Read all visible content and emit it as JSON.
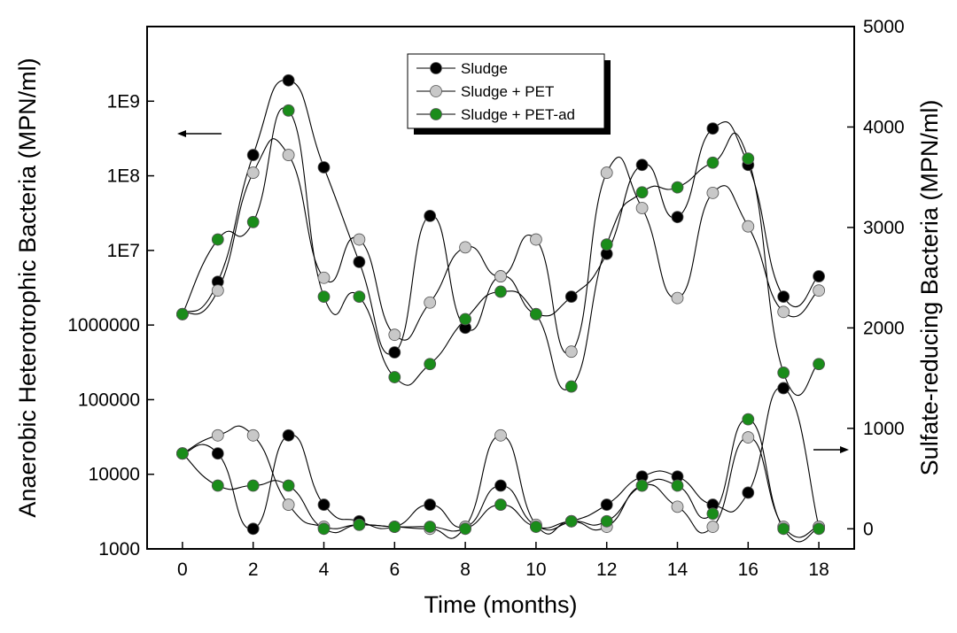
{
  "chart_data": {
    "type": "scatter",
    "x_label": "Time (months)",
    "x_range": [
      -1,
      19
    ],
    "x_ticks": [
      0,
      2,
      4,
      6,
      8,
      10,
      12,
      14,
      16,
      18
    ],
    "left_axis": {
      "label": "Anaerobic Heterotrophic Bacteria (MPN/ml)",
      "scale": "log",
      "range": [
        1000,
        10000000000
      ],
      "ticks": [
        1000,
        10000,
        100000,
        1000000,
        10000000,
        100000000,
        1000000000
      ],
      "tick_labels": [
        "1000",
        "10000",
        "100000",
        "1000000",
        "1E7",
        "1E8",
        "1E9"
      ]
    },
    "right_axis": {
      "label": "Sulfate-reducing Bacteria (MPN/ml)",
      "scale": "linear",
      "range": [
        -200,
        5000
      ],
      "ticks": [
        0,
        1000,
        2000,
        3000,
        4000,
        5000
      ],
      "tick_labels": [
        "0",
        "1000",
        "2000",
        "3000",
        "4000",
        "5000"
      ]
    },
    "legend": {
      "position": "top-center",
      "entries": [
        "Sludge",
        "Sludge + PET",
        "Sludge + PET-ad"
      ]
    },
    "series": [
      {
        "name": "Sludge",
        "axis": "left",
        "color": "#000000",
        "x": [
          0,
          1,
          2,
          3,
          4,
          5,
          6,
          7,
          8,
          9,
          10,
          11,
          12,
          13,
          14,
          15,
          16,
          17,
          18
        ],
        "y": [
          1400000,
          3800000,
          190000000,
          1900000000,
          130000000,
          7000000,
          430000,
          29000000,
          920000,
          4500000,
          1400000,
          2400000,
          9000000,
          140000000,
          28000000,
          430000000,
          140000000,
          2400000,
          4500000
        ]
      },
      {
        "name": "Sludge + PET",
        "axis": "left",
        "color": "#c8c8c8",
        "x": [
          0,
          1,
          2,
          3,
          4,
          5,
          6,
          7,
          8,
          9,
          10,
          11,
          12,
          13,
          14,
          15,
          16,
          17,
          18
        ],
        "y": [
          1400000,
          2900000,
          110000000,
          190000000,
          4300000,
          14000000,
          740000,
          2000000,
          11000000,
          4500000,
          14000000,
          440000,
          110000000,
          37000000,
          2300000,
          59000000,
          21000000,
          1500000,
          2900000
        ]
      },
      {
        "name": "Sludge + PET-ad",
        "axis": "left",
        "color": "#1a8c1a",
        "x": [
          0,
          1,
          2,
          3,
          4,
          5,
          6,
          7,
          8,
          9,
          10,
          11,
          12,
          13,
          14,
          15,
          16,
          17,
          18
        ],
        "y": [
          1400000,
          14000000,
          24000000,
          750000000,
          2400000,
          2400000,
          200000,
          300000,
          1200000,
          2800000,
          1400000,
          150000,
          12000000,
          60000000,
          70000000,
          150000000,
          170000000,
          230000,
          300000
        ]
      },
      {
        "name": "Sludge",
        "axis": "right",
        "color": "#000000",
        "x": [
          0,
          1,
          2,
          3,
          4,
          5,
          6,
          7,
          8,
          9,
          10,
          11,
          12,
          13,
          14,
          15,
          16,
          17,
          18
        ],
        "y": [
          750,
          750,
          0,
          930,
          240,
          75,
          20,
          240,
          20,
          430,
          30,
          75,
          240,
          520,
          520,
          240,
          360,
          1400,
          20
        ]
      },
      {
        "name": "Sludge + PET",
        "axis": "right",
        "color": "#c8c8c8",
        "x": [
          0,
          1,
          2,
          3,
          4,
          5,
          6,
          7,
          8,
          9,
          10,
          11,
          12,
          13,
          14,
          15,
          16,
          17,
          18
        ],
        "y": [
          750,
          930,
          930,
          240,
          20,
          40,
          20,
          0,
          20,
          930,
          40,
          75,
          20,
          430,
          220,
          20,
          910,
          20,
          20
        ]
      },
      {
        "name": "Sludge + PET-ad",
        "axis": "right",
        "color": "#1a8c1a",
        "x": [
          0,
          1,
          2,
          3,
          4,
          5,
          6,
          7,
          8,
          9,
          10,
          11,
          12,
          13,
          14,
          15,
          16,
          17,
          18
        ],
        "y": [
          750,
          430,
          430,
          430,
          0,
          40,
          20,
          20,
          0,
          240,
          20,
          75,
          75,
          430,
          430,
          150,
          1090,
          0,
          0
        ]
      }
    ],
    "annotations": [
      {
        "type": "arrow",
        "direction": "left",
        "points_to": "left_axis"
      },
      {
        "type": "arrow",
        "direction": "right",
        "points_to": "right_axis"
      }
    ]
  }
}
